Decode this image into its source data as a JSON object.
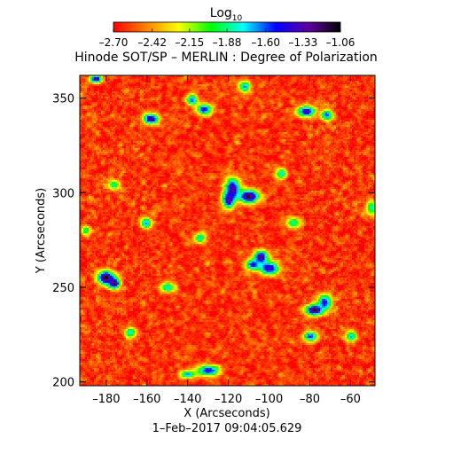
{
  "chart_data": {
    "type": "heatmap",
    "title": "Hinode SOT/SP – MERLIN : Degree of Polarization",
    "subtitle": "1–Feb–2017 09:04:05.629",
    "xlabel": "X (Arcseconds)",
    "ylabel": "Y (Arcseconds)",
    "xlim": [
      -193,
      -48
    ],
    "ylim": [
      198,
      362
    ],
    "xticks": [
      -180,
      -160,
      -140,
      -120,
      -100,
      -80,
      -60
    ],
    "xtick_labels": [
      "–180",
      "–160",
      "–140",
      "–120",
      "–100",
      "–80",
      "–60"
    ],
    "yticks": [
      200,
      250,
      300,
      350
    ],
    "ytick_labels": [
      "200",
      "250",
      "300",
      "350"
    ],
    "colorbar": {
      "label": "Log10",
      "label_main": "Log",
      "label_sub": "10",
      "range": [
        -2.7,
        -1.06
      ],
      "ticks": [
        -2.7,
        -2.42,
        -2.15,
        -1.88,
        -1.6,
        -1.33,
        -1.06
      ],
      "tick_labels": [
        "–2.70",
        "–2.42",
        "–2.15",
        "–1.88",
        "–1.60",
        "–1.33",
        "–1.06"
      ],
      "colors": [
        "#ff0000",
        "#ff8000",
        "#ffff00",
        "#00ff00",
        "#00ffff",
        "#0000ff",
        "#6000a0",
        "#000000"
      ]
    },
    "base_level": -2.62,
    "noise_amplitude": 0.22,
    "features": [
      {
        "x": -180,
        "y": 255,
        "peak": -1.12,
        "sx": 3.0,
        "sy": 2.5
      },
      {
        "x": -176,
        "y": 252,
        "peak": -1.2,
        "sx": 2.0,
        "sy": 2.0
      },
      {
        "x": -110,
        "y": 298,
        "peak": -1.18,
        "sx": 3.5,
        "sy": 2.5
      },
      {
        "x": -118,
        "y": 302,
        "peak": -1.3,
        "sx": 2.5,
        "sy": 4.0
      },
      {
        "x": -120,
        "y": 296,
        "peak": -1.3,
        "sx": 2.0,
        "sy": 3.0
      },
      {
        "x": -104,
        "y": 266,
        "peak": -1.3,
        "sx": 2.5,
        "sy": 2.5
      },
      {
        "x": -100,
        "y": 260,
        "peak": -1.4,
        "sx": 3.5,
        "sy": 2.5
      },
      {
        "x": -108,
        "y": 262,
        "peak": -1.5,
        "sx": 2.5,
        "sy": 2.0
      },
      {
        "x": -78,
        "y": 238,
        "peak": -1.15,
        "sx": 3.0,
        "sy": 2.0
      },
      {
        "x": -73,
        "y": 242,
        "peak": -1.5,
        "sx": 2.5,
        "sy": 3.0
      },
      {
        "x": -158,
        "y": 339,
        "peak": -1.3,
        "sx": 2.5,
        "sy": 2.0
      },
      {
        "x": -132,
        "y": 344,
        "peak": -1.5,
        "sx": 2.5,
        "sy": 2.0
      },
      {
        "x": -138,
        "y": 349,
        "peak": -1.6,
        "sx": 2.0,
        "sy": 2.0
      },
      {
        "x": -82,
        "y": 343,
        "peak": -1.4,
        "sx": 3.0,
        "sy": 2.0
      },
      {
        "x": -72,
        "y": 341,
        "peak": -1.6,
        "sx": 2.0,
        "sy": 2.0
      },
      {
        "x": -130,
        "y": 206,
        "peak": -1.5,
        "sx": 4.0,
        "sy": 2.0
      },
      {
        "x": -140,
        "y": 204,
        "peak": -1.7,
        "sx": 2.5,
        "sy": 1.5
      },
      {
        "x": -185,
        "y": 360,
        "peak": -1.3,
        "sx": 2.0,
        "sy": 1.5
      },
      {
        "x": -160,
        "y": 284,
        "peak": -1.7,
        "sx": 2.0,
        "sy": 2.0
      },
      {
        "x": -176,
        "y": 304,
        "peak": -1.9,
        "sx": 2.0,
        "sy": 2.0
      },
      {
        "x": -150,
        "y": 250,
        "peak": -1.8,
        "sx": 2.5,
        "sy": 2.0
      },
      {
        "x": -112,
        "y": 356,
        "peak": -1.7,
        "sx": 2.0,
        "sy": 2.0
      },
      {
        "x": -80,
        "y": 224,
        "peak": -1.6,
        "sx": 2.5,
        "sy": 2.0
      },
      {
        "x": -60,
        "y": 224,
        "peak": -1.75,
        "sx": 2.0,
        "sy": 2.0
      },
      {
        "x": -94,
        "y": 310,
        "peak": -1.8,
        "sx": 2.0,
        "sy": 2.0
      },
      {
        "x": -134,
        "y": 276,
        "peak": -1.8,
        "sx": 2.0,
        "sy": 2.0
      },
      {
        "x": -88,
        "y": 284,
        "peak": -1.85,
        "sx": 2.5,
        "sy": 2.0
      },
      {
        "x": -168,
        "y": 226,
        "peak": -1.8,
        "sx": 2.0,
        "sy": 2.0
      },
      {
        "x": -50,
        "y": 292,
        "peak": -1.9,
        "sx": 2.0,
        "sy": 3.0
      },
      {
        "x": -190,
        "y": 280,
        "peak": -1.9,
        "sx": 1.5,
        "sy": 2.0
      }
    ]
  }
}
